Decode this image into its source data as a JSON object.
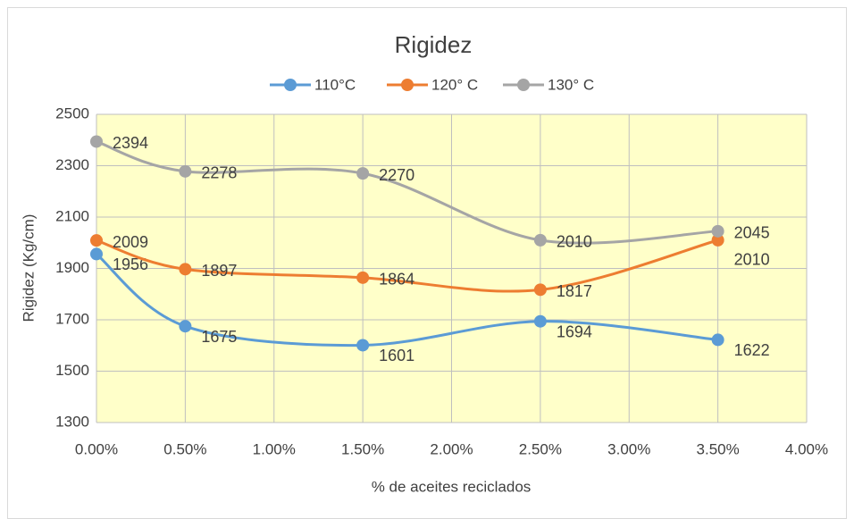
{
  "chart_data": {
    "type": "line",
    "title": "Rigidez",
    "x_label": "% de aceites reciclados",
    "y_label": "Rigidez (Kg/cm)",
    "x": [
      0,
      0.5,
      1.5,
      2.5,
      3.5
    ],
    "series": [
      {
        "name": "110°C",
        "color": "#5b9bd5",
        "values": [
          1956,
          1675,
          1601,
          1694,
          1622
        ]
      },
      {
        "name": "120° C",
        "color": "#ed7d31",
        "values": [
          2009,
          1897,
          1864,
          1817,
          2010
        ]
      },
      {
        "name": "130° C",
        "color": "#a5a5a5",
        "values": [
          2394,
          2278,
          2270,
          2010,
          2045
        ]
      }
    ],
    "xlim": [
      0,
      4
    ],
    "xticks": [
      {
        "value": 0,
        "label": "0.00%"
      },
      {
        "value": 0.5,
        "label": "0.50%"
      },
      {
        "value": 1,
        "label": "1.00%"
      },
      {
        "value": 1.5,
        "label": "1.50%"
      },
      {
        "value": 2,
        "label": "2.00%"
      },
      {
        "value": 2.5,
        "label": "2.50%"
      },
      {
        "value": 3,
        "label": "3.00%"
      },
      {
        "value": 3.5,
        "label": "3.50%"
      },
      {
        "value": 4,
        "label": "4.00%"
      }
    ],
    "ylim": [
      1300,
      2500
    ],
    "yticks": [
      1300,
      1500,
      1700,
      1900,
      2100,
      2300,
      2500
    ],
    "grid": true,
    "smooth": true,
    "legend": "top",
    "plot_background": "#ffffc9"
  }
}
